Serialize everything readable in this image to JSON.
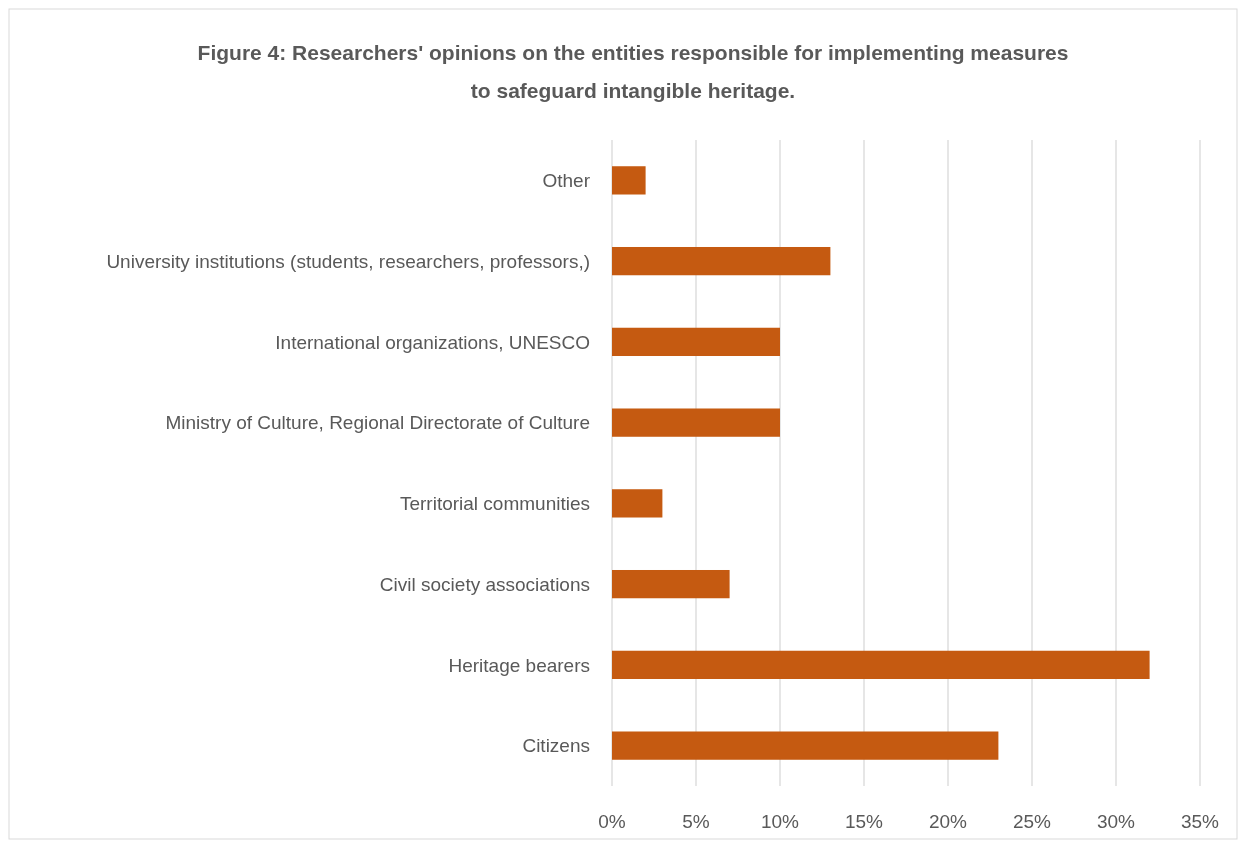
{
  "chart_data": {
    "type": "bar",
    "orientation": "horizontal",
    "title": "Figure 4: Researchers' opinions on the entities responsible for implementing measures\nto safeguard intangible heritage.",
    "categories": [
      "Other",
      "University institutions (students, researchers, professors,)",
      "International organizations, UNESCO",
      "Ministry of Culture, Regional Directorate of Culture",
      "Territorial communities",
      "Civil society associations",
      "Heritage bearers",
      "Citizens"
    ],
    "values": [
      2,
      13,
      10,
      10,
      3,
      7,
      32,
      23
    ],
    "color": "#c55a11",
    "xlim": [
      0,
      35
    ],
    "xticks": [
      {
        "value": 0,
        "label": "0%"
      },
      {
        "value": 5,
        "label": "5%"
      },
      {
        "value": 10,
        "label": "10%"
      },
      {
        "value": 15,
        "label": "15%"
      },
      {
        "value": 20,
        "label": "20%"
      },
      {
        "value": 25,
        "label": "25%"
      },
      {
        "value": 30,
        "label": "30%"
      },
      {
        "value": 35,
        "label": "35%"
      }
    ],
    "grid": "x"
  }
}
